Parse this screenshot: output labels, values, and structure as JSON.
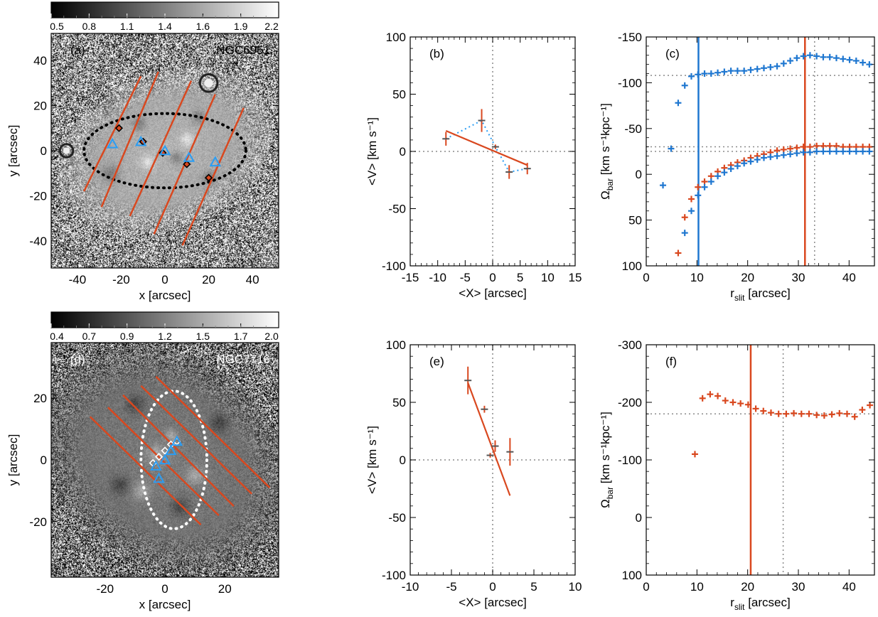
{
  "colors": {
    "orange": "#d9481f",
    "blue": "#1f77d0",
    "cyan": "#2a9df4",
    "grey": "#8a8a8a",
    "black": "#000000"
  },
  "chart_data": [
    {
      "id": "a",
      "type": "image",
      "panel_label": "(a)",
      "galaxy": "NGC6951",
      "xlabel": "x [arcsec]",
      "ylabel": "y [arcsec]",
      "xlim": [
        -52,
        52
      ],
      "ylim": [
        -52,
        52
      ],
      "xticks": [
        -40,
        -20,
        0,
        20,
        40
      ],
      "yticks": [
        -40,
        -20,
        0,
        20,
        40
      ],
      "colorbar": {
        "min": 0.5,
        "max": 2.2,
        "ticks": [
          "0.5",
          "0.8",
          "1.1",
          "1.4",
          "1.6",
          "1.9",
          "2.2"
        ]
      },
      "image": {
        "clear_radius": 38,
        "ellipse_rx": 44,
        "ellipse_ry": 30,
        "angle": 20,
        "bg": 165
      },
      "dark_spots": [
        [
          -30,
          25,
          5
        ],
        [
          -25,
          -10,
          4
        ],
        [
          -12,
          12,
          3
        ],
        [
          5,
          -3,
          3
        ],
        [
          20,
          -12,
          3
        ],
        [
          15,
          15,
          3
        ]
      ],
      "bright_spots": [
        [
          -22,
          30,
          4
        ],
        [
          -8,
          -5,
          3
        ],
        [
          10,
          5,
          3
        ]
      ],
      "stars": [
        [
          20,
          30,
          4
        ],
        [
          -45,
          0,
          3
        ]
      ],
      "ellipse": {
        "cx": 0,
        "cy": 0,
        "rx": 37,
        "ry": 17,
        "angle": 0,
        "color": "black"
      },
      "slits": [
        [
          [
            -37,
            -18
          ],
          [
            -11,
            33
          ]
        ],
        [
          [
            -29,
            -25
          ],
          [
            -3,
            35
          ]
        ],
        [
          [
            -16,
            -29
          ],
          [
            12,
            31
          ]
        ],
        [
          [
            -5,
            -37
          ],
          [
            23,
            25
          ]
        ],
        [
          [
            8,
            -42
          ],
          [
            36,
            19
          ]
        ]
      ],
      "triangles": [
        [
          -24,
          3
        ],
        [
          -11,
          4
        ],
        [
          0,
          0
        ],
        [
          11,
          -3
        ],
        [
          23,
          -5
        ]
      ],
      "diamonds": [
        [
          -21,
          10
        ],
        [
          -10,
          4
        ],
        [
          -1,
          -1
        ],
        [
          10,
          -6
        ],
        [
          20,
          -12
        ]
      ]
    },
    {
      "id": "b",
      "type": "errorbar",
      "panel_label": "(b)",
      "xlabel": "<X> [arcsec]",
      "ylabel": "<V> [km s⁻¹]",
      "xlim": [
        -15,
        15
      ],
      "ylim": [
        -100,
        100
      ],
      "xticks": [
        -15,
        -10,
        -5,
        0,
        5,
        10,
        15
      ],
      "yticks": [
        -100,
        -50,
        0,
        50,
        100
      ],
      "points": [
        {
          "x": -8.5,
          "y": 11,
          "err": 6
        },
        {
          "x": -2,
          "y": 27,
          "err": 10
        },
        {
          "x": 0.5,
          "y": 4,
          "err": 2
        },
        {
          "x": 3,
          "y": -18,
          "err": 6
        },
        {
          "x": 6.3,
          "y": -15,
          "err": 5
        }
      ],
      "fit_line": [
        [
          -8.5,
          18
        ],
        [
          6.3,
          -12
        ]
      ],
      "dotted_line": [
        [
          -8.5,
          11
        ],
        [
          -2,
          27
        ],
        [
          0.5,
          4
        ],
        [
          3,
          -18
        ],
        [
          6.3,
          -15
        ]
      ]
    },
    {
      "id": "c",
      "type": "scatter",
      "panel_label": "(c)",
      "xlabel": "r_slit [arcsec]",
      "ylabel": "Ω_bar [km s⁻¹kpc⁻¹]",
      "xlim": [
        0,
        45
      ],
      "ylim": [
        -150,
        100
      ],
      "inverted_y": true,
      "xticks": [
        0,
        10,
        20,
        30,
        40
      ],
      "yticks": [
        -150,
        -100,
        -50,
        0,
        50,
        100
      ],
      "ytick_labels": [
        "-150",
        "-100",
        "-50",
        "0",
        "50",
        "100"
      ],
      "hlines": [
        -108,
        -30,
        -25
      ],
      "vlines": [
        {
          "x": 10.3,
          "color": "blue",
          "style": "solid"
        },
        {
          "x": 31.3,
          "color": "orange",
          "style": "solid"
        },
        {
          "x": 33.2,
          "color": "grey",
          "style": "dotted"
        }
      ],
      "series": [
        {
          "name": "blue_upper",
          "color": "blue",
          "x": [
            6.3,
            7.6,
            8.9,
            10.2,
            11.5,
            12.8,
            14.1,
            15.4,
            16.7,
            18,
            19.3,
            20.6,
            21.9,
            23.2,
            24.5,
            25.8,
            27.1,
            28.4,
            29.7,
            31,
            32.3,
            33.6,
            34.9,
            36.2,
            37.5,
            38.8,
            40.1,
            41.4,
            42.7,
            44
          ],
          "y": [
            -78,
            -97,
            -107,
            -109,
            -110,
            -110,
            -111,
            -112,
            -113,
            -113,
            -113,
            -114,
            -115,
            -116,
            -117,
            -118,
            -121,
            -124,
            -127,
            -129,
            -130,
            -129,
            -128,
            -128,
            -127,
            -126,
            -125,
            -124,
            -122,
            -120
          ]
        },
        {
          "name": "orange_lower",
          "color": "orange",
          "x": [
            6.3,
            7.6,
            8.9,
            10.2,
            11.5,
            12.8,
            14.1,
            15.4,
            16.7,
            18,
            19.3,
            20.6,
            21.9,
            23.2,
            24.5,
            25.8,
            27.1,
            28.4,
            29.7,
            31,
            32.3,
            33.6,
            34.9,
            36.2,
            37.5,
            38.8,
            40.1,
            41.4,
            42.7,
            44
          ],
          "y": [
            86,
            47,
            27,
            14,
            8,
            2,
            -3,
            -7,
            -10,
            -13,
            -15,
            -18,
            -20,
            -22,
            -24,
            -26,
            -27,
            -28,
            -29,
            -30,
            -30,
            -31,
            -31,
            -31,
            -31,
            -30,
            -30,
            -30,
            -30,
            -30
          ]
        },
        {
          "name": "blue_lower",
          "color": "blue",
          "x": [
            3.3,
            4.9,
            7.6,
            8.9,
            10.2,
            11.5,
            12.8,
            14.1,
            15.4,
            16.7,
            18,
            19.3,
            20.6,
            21.9,
            23.2,
            24.5,
            25.8,
            27.1,
            28.4,
            29.7,
            31,
            32.3,
            33.6,
            34.9,
            36.2,
            37.5,
            38.8,
            40.1,
            41.4,
            42.7,
            44
          ],
          "y": [
            12,
            -28,
            64,
            40,
            23,
            14,
            8,
            2,
            -2,
            -6,
            -9,
            -12,
            -14,
            -16,
            -18,
            -19,
            -20,
            -21,
            -22,
            -23,
            -24,
            -24,
            -25,
            -25,
            -25,
            -25,
            -25,
            -25,
            -25,
            -25,
            -25
          ]
        }
      ]
    },
    {
      "id": "d",
      "type": "image",
      "panel_label": "(d)",
      "galaxy": "NGC7716",
      "xlabel": "x [arcsec]",
      "ylabel": "y [arcsec]",
      "xlim": [
        -38,
        38
      ],
      "ylim": [
        -38,
        38
      ],
      "xticks": [
        -20,
        0,
        20
      ],
      "yticks": [
        -20,
        0,
        20
      ],
      "colorbar": {
        "min": 0.4,
        "max": 2.0,
        "ticks": [
          "0.4",
          "0.7",
          "0.9",
          "1.2",
          "1.5",
          "1.7",
          "2.0"
        ]
      },
      "image": {
        "clear_radius": 33,
        "ellipse_rx": 38,
        "ellipse_ry": 30,
        "angle": -30,
        "bg": 110
      },
      "dark_spots": [
        [
          -10,
          18,
          3
        ],
        [
          5,
          -15,
          3
        ],
        [
          -15,
          -8,
          3
        ],
        [
          18,
          12,
          3
        ]
      ],
      "bright_spots": [
        [
          -3,
          2,
          3
        ],
        [
          2,
          8,
          2
        ],
        [
          -8,
          -10,
          3
        ],
        [
          10,
          -5,
          3
        ]
      ],
      "stars": [],
      "ellipse": {
        "cx": 3,
        "cy": 0,
        "rx": 11,
        "ry": 23,
        "angle": 0,
        "color": "white"
      },
      "slits": [
        [
          [
            -25,
            14
          ],
          [
            12,
            -21
          ]
        ],
        [
          [
            -19,
            17
          ],
          [
            18,
            -18
          ]
        ],
        [
          [
            -14,
            21
          ],
          [
            23,
            -15
          ]
        ],
        [
          [
            -8,
            24
          ],
          [
            29,
            -11
          ]
        ],
        [
          [
            -3,
            27
          ],
          [
            35,
            -9
          ]
        ]
      ],
      "triangles": [
        [
          -2,
          -6
        ],
        [
          -3,
          -2
        ],
        [
          0,
          0
        ],
        [
          2,
          3
        ],
        [
          4,
          6
        ]
      ],
      "diamonds": [
        [
          -4,
          -1
        ],
        [
          -2,
          1
        ],
        [
          0,
          3
        ],
        [
          2,
          5
        ],
        [
          4,
          6
        ]
      ]
    },
    {
      "id": "e",
      "type": "errorbar",
      "panel_label": "(e)",
      "xlabel": "<X> [arcsec]",
      "ylabel": "<V> [km s⁻¹]",
      "xlim": [
        -10,
        10
      ],
      "ylim": [
        -100,
        100
      ],
      "xticks": [
        -10,
        -5,
        0,
        5,
        10
      ],
      "yticks": [
        -100,
        -50,
        0,
        50,
        100
      ],
      "points": [
        {
          "x": -3,
          "y": 69,
          "err": 12
        },
        {
          "x": -1,
          "y": 44,
          "err": 3
        },
        {
          "x": -0.3,
          "y": 4,
          "err": 2
        },
        {
          "x": 0.3,
          "y": 12,
          "err": 5
        },
        {
          "x": 2.1,
          "y": 7,
          "err": 12
        }
      ],
      "fit_line": [
        [
          -3,
          67
        ],
        [
          2.1,
          -31
        ]
      ],
      "dotted_line": []
    },
    {
      "id": "f",
      "type": "scatter",
      "panel_label": "(f)",
      "xlabel": "r_slit [arcsec]",
      "ylabel": "Ω_bar [km s⁻¹kpc⁻¹]",
      "xlim": [
        0,
        45
      ],
      "ylim": [
        -300,
        100
      ],
      "inverted_y": true,
      "xticks": [
        0,
        10,
        20,
        30,
        40
      ],
      "yticks": [
        -300,
        -200,
        -100,
        0,
        100
      ],
      "ytick_labels": [
        "-300",
        "-200",
        "-100",
        "0",
        "100"
      ],
      "hlines": [
        -180
      ],
      "vlines": [
        {
          "x": 20.6,
          "color": "orange",
          "style": "solid"
        },
        {
          "x": 27,
          "color": "grey",
          "style": "dotted"
        }
      ],
      "series": [
        {
          "name": "orange",
          "color": "orange",
          "x": [
            9.6,
            11.1,
            12.6,
            14.1,
            15.6,
            17.1,
            18.6,
            20.1,
            21.6,
            23.1,
            24.6,
            26.1,
            27.6,
            29.1,
            30.6,
            32.1,
            33.6,
            35.1,
            36.6,
            38.1,
            39.6,
            41.1,
            42.6,
            44.1
          ],
          "y": [
            -110,
            -207,
            -214,
            -211,
            -203,
            -200,
            -198,
            -196,
            -189,
            -185,
            -182,
            -180,
            -180,
            -181,
            -180,
            -180,
            -178,
            -177,
            -179,
            -181,
            -180,
            -175,
            -187,
            -195
          ]
        }
      ]
    }
  ],
  "layout_panels": [
    [
      72,
      47,
      320,
      330
    ],
    [
      577,
      52,
      232,
      322
    ],
    [
      909,
      52,
      321,
      322
    ],
    [
      72,
      482,
      320,
      330
    ],
    [
      577,
      485,
      232,
      324
    ],
    [
      909,
      485,
      321,
      324
    ]
  ],
  "layout_colorbars": [
    [
      72,
      3,
      320,
      22
    ],
    [
      72,
      439,
      320,
      22
    ]
  ]
}
